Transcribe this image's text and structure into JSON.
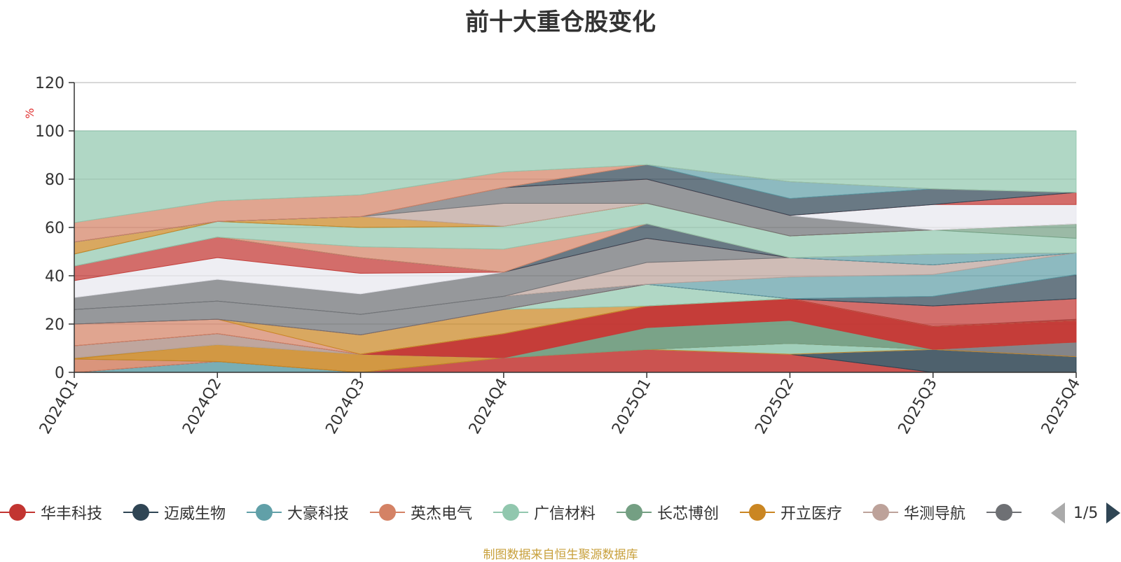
{
  "title": "前十大重仓股变化",
  "source": "制图数据来自恒生聚源数据库",
  "pager": {
    "text": "1/5"
  },
  "legend": [
    {
      "name": "华丰科技",
      "color": "#c23531"
    },
    {
      "name": "迈威生物",
      "color": "#2f4554"
    },
    {
      "name": "大豪科技",
      "color": "#61a0a8"
    },
    {
      "name": "英杰电气",
      "color": "#d48265"
    },
    {
      "name": "广信材料",
      "color": "#91c7ae"
    },
    {
      "name": "长芯博创",
      "color": "#749f83"
    },
    {
      "name": "开立医疗",
      "color": "#ca8622"
    },
    {
      "name": "华测导航",
      "color": "#bda29a"
    },
    {
      "name": "",
      "color": "#6e7074"
    }
  ],
  "chart_data": {
    "type": "area",
    "stacked": true,
    "categories": [
      "2024Q1",
      "2024Q2",
      "2024Q3",
      "2024Q4",
      "2025Q1",
      "2025Q2",
      "2025Q3",
      "2025Q4"
    ],
    "ylabel": "%",
    "ylim": [
      0,
      120
    ],
    "yticks": [
      0,
      20,
      40,
      60,
      80,
      100,
      120
    ],
    "legend_position": "bottom",
    "bands": [
      {
        "color": "#61a0a8",
        "values": [
          0,
          4.5,
          0,
          0,
          0,
          0,
          0,
          0
        ]
      },
      {
        "color": "#c23531",
        "values": [
          0,
          0,
          0,
          6,
          9.5,
          7.5,
          0,
          0
        ]
      },
      {
        "color": "#2f4554",
        "values": [
          0,
          0,
          0,
          0,
          0,
          0,
          9.5,
          6.5
        ]
      },
      {
        "color": "#d48265",
        "values": [
          5.5,
          0,
          0,
          0,
          0,
          0,
          0,
          0
        ]
      },
      {
        "color": "#91c7ae",
        "values": [
          0,
          0,
          0,
          0,
          0,
          4.5,
          0,
          0
        ]
      },
      {
        "color": "#6e7074",
        "values": [
          0,
          0,
          0,
          0,
          0,
          0,
          0,
          6
        ]
      },
      {
        "color": "#ca8622",
        "values": [
          0.5,
          7,
          7.5,
          0,
          0,
          0,
          0,
          0
        ]
      },
      {
        "color": "#749f83",
        "values": [
          0,
          0,
          0,
          0,
          9,
          9.5,
          0,
          0
        ]
      },
      {
        "color": "#bda29a",
        "values": [
          5,
          4.5,
          0,
          0,
          0,
          0,
          0,
          0
        ]
      },
      {
        "color": "#c23531",
        "values": [
          0,
          0,
          0,
          10,
          9,
          9,
          9.5,
          9
        ]
      },
      {
        "color": "#6e7074",
        "values": [
          0,
          0,
          0,
          0,
          0,
          0,
          0,
          0.5
        ]
      },
      {
        "color": "#d48265",
        "values": [
          0,
          0,
          0,
          0,
          0,
          0,
          0,
          0
        ]
      },
      {
        "color": "#e8e8ee",
        "values": [
          0,
          0,
          0,
          0,
          0,
          0,
          0,
          0
        ]
      },
      {
        "color": "#bda29a",
        "values": [
          0,
          0,
          0,
          0,
          0,
          0,
          0,
          0
        ]
      },
      {
        "color": "#ca8622",
        "values": [
          0,
          0,
          0,
          0,
          0,
          0,
          0,
          0
        ]
      },
      {
        "color": "#91c7ae",
        "values": [
          0,
          0,
          0,
          0,
          0,
          0,
          0,
          0
        ]
      },
      {
        "color": "#61a0a8",
        "values": [
          0,
          0,
          0,
          0,
          0,
          0,
          0,
          0
        ]
      },
      {
        "color": "#2f4554",
        "values": [
          0,
          0,
          0,
          0,
          0,
          0,
          0,
          0
        ]
      },
      {
        "color": "#749f83",
        "values": [
          0,
          0,
          0,
          0,
          0,
          0,
          0,
          0
        ]
      },
      {
        "color": "#6e7074",
        "values": [
          0,
          0,
          0,
          0,
          0,
          0,
          0,
          0
        ]
      },
      {
        "color": "#c23531",
        "values": [
          0,
          0,
          0,
          0,
          0,
          0,
          0,
          0
        ]
      },
      {
        "color": "#2f4554",
        "values": [
          0,
          0,
          0,
          0,
          0,
          0,
          0,
          0
        ]
      },
      {
        "color": "#ca8622",
        "values": [
          0,
          0,
          0,
          0,
          0,
          0,
          0,
          0
        ]
      }
    ],
    "layers": [
      {
        "color": "#ca8622",
        "lower": [
          5.5,
          11.5,
          7.5,
          6,
          9.5,
          7.5,
          9.5,
          6.5
        ],
        "upper": [
          6,
          11.5,
          7.5,
          6,
          9.5,
          7.5,
          9.5,
          6.5
        ]
      },
      {
        "color": "#749f83",
        "lower": [
          6,
          11.5,
          7.5,
          6,
          9.5,
          12,
          9.5,
          12.5
        ],
        "upper": [
          6,
          11.5,
          7.5,
          6,
          18.5,
          21.5,
          9.5,
          12.5
        ]
      },
      {
        "color": "#bda29a",
        "lower": [
          6,
          11.5,
          7.5,
          6,
          18.5,
          21.5,
          9.5,
          12.5
        ],
        "upper": [
          11,
          16,
          7.5,
          6,
          18.5,
          21.5,
          9.5,
          12.5
        ]
      },
      {
        "color": "#c23531",
        "lower": [
          11,
          16,
          7.5,
          6,
          18.5,
          21.5,
          9.5,
          12.5
        ],
        "upper": [
          11,
          16,
          7.5,
          16,
          27.5,
          30.5,
          19,
          21.5
        ]
      },
      {
        "color": "#6e7074",
        "lower": [
          11,
          16,
          7.5,
          16,
          27.5,
          30.5,
          19,
          21.5
        ],
        "upper": [
          11,
          16,
          7.5,
          16,
          27.5,
          30.5,
          19,
          21.5
        ]
      },
      {
        "color": "#d48265",
        "lower": [
          11,
          16,
          7.5,
          16,
          27.5,
          30.5,
          19,
          21.5
        ],
        "upper": [
          20,
          22,
          7.5,
          16,
          27.5,
          30.5,
          19,
          21.5
        ]
      },
      {
        "color": "#ca8622",
        "lower": [
          20,
          22,
          7.5,
          16,
          27.5,
          30.5,
          19,
          21.5
        ],
        "upper": [
          20,
          22,
          15.5,
          26,
          27.5,
          30.5,
          19,
          21.5
        ]
      },
      {
        "color": "#91c7ae",
        "lower": [
          20,
          22,
          15.5,
          26,
          27.5,
          30.5,
          19,
          21.5
        ],
        "upper": [
          20,
          22,
          15.5,
          26,
          36.5,
          30.5,
          19,
          21.5
        ]
      },
      {
        "color": "#c23531",
        "lower": [
          20,
          22,
          15.5,
          26,
          36.5,
          30.5,
          19,
          21.5
        ],
        "upper": [
          20,
          22,
          15.5,
          26,
          36.5,
          30.5,
          27.5,
          30.5
        ]
      },
      {
        "color": "#6e7074",
        "lower": [
          20,
          22,
          15.5,
          26,
          36.5,
          30.5,
          27.5,
          30.5
        ],
        "upper": [
          26,
          29.5,
          24,
          31.5,
          36.5,
          30.5,
          27.5,
          30.5
        ]
      },
      {
        "color": "#2f4554",
        "lower": [
          26,
          29.5,
          24,
          31.5,
          36.5,
          30.5,
          27.5,
          30.5
        ],
        "upper": [
          26,
          29.5,
          24,
          31.5,
          36.5,
          30.5,
          31.5,
          40.5
        ]
      },
      {
        "color": "#61a0a8",
        "lower": [
          26,
          29.5,
          24,
          31.5,
          36.5,
          30.5,
          31.5,
          40.5
        ],
        "upper": [
          26,
          29.5,
          24,
          31.5,
          36.5,
          39.5,
          40.5,
          49.5
        ]
      },
      {
        "color": "#bda29a",
        "lower": [
          26,
          29.5,
          24,
          31.5,
          36.5,
          39.5,
          40.5,
          49.5
        ],
        "upper": [
          26,
          29.5,
          24,
          31.5,
          45.5,
          47.5,
          44.5,
          49.5
        ]
      },
      {
        "color": "#6e7074",
        "lower": [
          26,
          29.5,
          24,
          31.5,
          45.5,
          47.5,
          44.5,
          49.5
        ],
        "upper": [
          31,
          38.5,
          32.5,
          41.5,
          55.5,
          47.5,
          44.5,
          49.5
        ]
      },
      {
        "color": "#e8e8ee",
        "lower": [
          31,
          38.5,
          32.5,
          41.5,
          55.5,
          47.5,
          44.5,
          49.5
        ],
        "upper": [
          38,
          47.5,
          41,
          41.5,
          55.5,
          47.5,
          44.5,
          49.5
        ]
      },
      {
        "color": "#c23531",
        "lower": [
          38,
          47.5,
          41,
          41.5,
          55.5,
          47.5,
          44.5,
          49.5
        ],
        "upper": [
          44,
          56,
          47.5,
          41.5,
          55.5,
          47.5,
          44.5,
          49.5
        ]
      },
      {
        "color": "#2f4554",
        "lower": [
          44,
          56,
          47.5,
          41.5,
          55.5,
          47.5,
          44.5,
          49.5
        ],
        "upper": [
          44,
          56,
          47.5,
          41.5,
          61.5,
          47.5,
          44.5,
          49.5
        ]
      },
      {
        "color": "#61a0a8",
        "lower": [
          44,
          56,
          47.5,
          41.5,
          61.5,
          47.5,
          44.5,
          49.5
        ],
        "upper": [
          44,
          56,
          47.5,
          41.5,
          61.5,
          47.5,
          49,
          49.5
        ]
      },
      {
        "color": "#d48265",
        "lower": [
          44,
          56,
          47.5,
          41.5,
          61.5,
          47.5,
          49,
          49.5
        ],
        "upper": [
          44,
          56,
          52,
          51,
          61.5,
          47.5,
          49,
          49.5
        ]
      },
      {
        "color": "#91c7ae",
        "lower": [
          44,
          56,
          52,
          51,
          61.5,
          47.5,
          49,
          49.5
        ],
        "upper": [
          49,
          62.5,
          60,
          60.5,
          70,
          56.5,
          59,
          55.5
        ]
      },
      {
        "color": "#749f83",
        "lower": [
          49,
          62.5,
          60,
          60.5,
          70,
          56.5,
          59,
          55.5
        ],
        "upper": [
          49,
          62.5,
          60,
          60.5,
          70,
          56.5,
          59,
          61.5
        ]
      },
      {
        "color": "#ca8622",
        "lower": [
          49,
          62.5,
          60,
          60.5,
          70,
          56.5,
          59,
          61.5
        ],
        "upper": [
          54,
          62.5,
          64.5,
          60.5,
          70,
          56.5,
          59,
          61.5
        ]
      },
      {
        "color": "#bda29a",
        "lower": [
          54,
          62.5,
          64.5,
          60.5,
          70,
          56.5,
          59,
          61.5
        ],
        "upper": [
          54,
          62.5,
          64.5,
          70,
          70,
          56.5,
          59,
          61.5
        ]
      },
      {
        "color": "#6e7074",
        "lower": [
          54,
          62.5,
          64.5,
          70,
          70,
          56.5,
          59,
          61.5
        ],
        "upper": [
          54,
          62.5,
          64.5,
          76.5,
          80,
          65,
          59,
          61.5
        ]
      },
      {
        "color": "#e8e8ee",
        "lower": [
          54,
          62.5,
          64.5,
          76.5,
          80,
          65,
          59,
          61.5
        ],
        "upper": [
          54,
          62.5,
          64.5,
          76.5,
          80,
          65,
          69.5,
          69.5
        ]
      },
      {
        "color": "#c23531",
        "lower": [
          54,
          62.5,
          64.5,
          76.5,
          80,
          65,
          69.5,
          69.5
        ],
        "upper": [
          54,
          62.5,
          64.5,
          76.5,
          80,
          65,
          69.5,
          74.5
        ]
      },
      {
        "color": "#2f4554",
        "lower": [
          54,
          62.5,
          64.5,
          76.5,
          80,
          65,
          69.5,
          74.5
        ],
        "upper": [
          54,
          62.5,
          64.5,
          76.5,
          86,
          72,
          76,
          74.5
        ]
      },
      {
        "color": "#61a0a8",
        "lower": [
          54,
          62.5,
          64.5,
          76.5,
          86,
          72,
          76,
          74.5
        ],
        "upper": [
          54,
          62.5,
          64.5,
          76.5,
          86,
          79,
          76,
          74.5
        ]
      },
      {
        "color": "#d48265",
        "lower": [
          54,
          62.5,
          64.5,
          76.5,
          86,
          79,
          76,
          74.5
        ],
        "upper": [
          62,
          71,
          73.5,
          83,
          86,
          79,
          76,
          74.5
        ]
      },
      {
        "color": "#91c7ae",
        "lower": [
          62,
          71,
          73.5,
          83,
          86,
          79,
          76,
          74.5
        ],
        "upper": [
          100,
          100,
          100,
          100,
          100,
          100,
          100,
          100
        ]
      }
    ]
  }
}
